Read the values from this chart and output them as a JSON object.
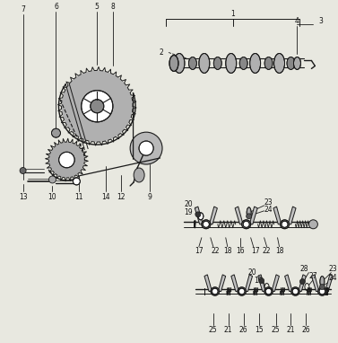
{
  "bg_color": "#e8e8e0",
  "line_color": "#1a1a1a",
  "text_color": "#111111",
  "fig_width": 3.77,
  "fig_height": 3.82,
  "dpi": 100,
  "fs": 5.5
}
